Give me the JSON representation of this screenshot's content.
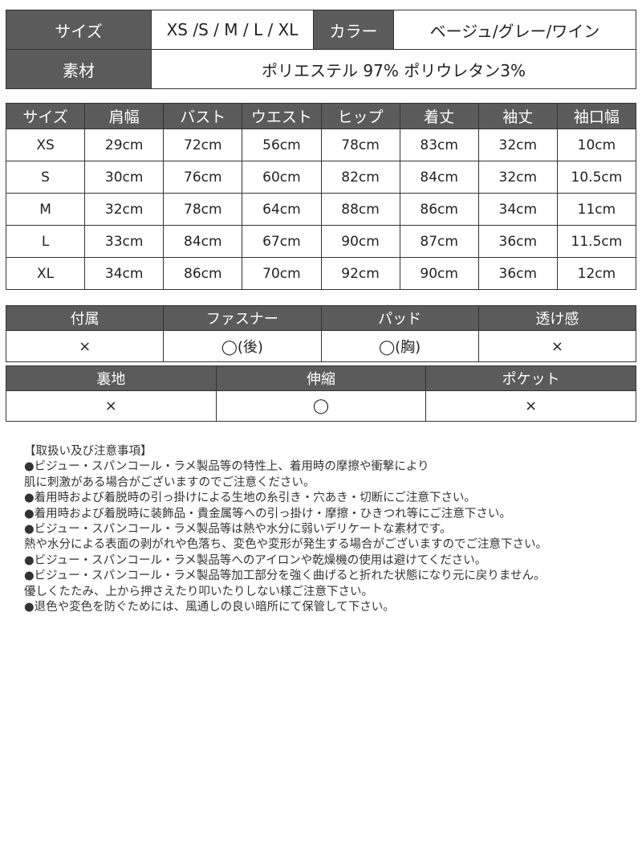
{
  "spec": {
    "size_label": "サイズ",
    "size_value": "XS /S / M / L / XL",
    "color_label": "カラー",
    "color_value": "ベージュ/グレー/ワイン",
    "material_label": "素材",
    "material_value": "ポリエステル 97% ポリウレタン3%"
  },
  "size_table": {
    "headers": [
      "サイズ",
      "肩幅",
      "バスト",
      "ウエスト",
      "ヒップ",
      "着丈",
      "袖丈",
      "袖口幅"
    ],
    "rows": [
      [
        "XS",
        "29cm",
        "72cm",
        "56cm",
        "78cm",
        "83cm",
        "32cm",
        "10cm"
      ],
      [
        "S",
        "30cm",
        "76cm",
        "60cm",
        "82cm",
        "84cm",
        "32cm",
        "10.5cm"
      ],
      [
        "M",
        "32cm",
        "78cm",
        "64cm",
        "88cm",
        "86cm",
        "34cm",
        "11cm"
      ],
      [
        "L",
        "33cm",
        "84cm",
        "67cm",
        "90cm",
        "87cm",
        "36cm",
        "11.5cm"
      ],
      [
        "XL",
        "34cm",
        "86cm",
        "70cm",
        "92cm",
        "90cm",
        "36cm",
        "12cm"
      ]
    ]
  },
  "features1": {
    "headers": [
      "付属",
      "ファスナー",
      "パッド",
      "透け感"
    ],
    "values": [
      "×",
      "◯(後)",
      "◯(胸)",
      "×"
    ]
  },
  "features2": {
    "headers": [
      "裏地",
      "伸縮",
      "ポケット"
    ],
    "values": [
      "×",
      "◯",
      "×"
    ]
  },
  "notes": [
    "【取扱い及び注意事項】",
    "●ビジュー・スパンコール・ラメ製品等の特性上、着用時の摩擦や衝撃により",
    "肌に刺激がある場合がございますのでご注意ください。",
    "●着用時および着脱時の引っ掛けによる生地の糸引き・穴あき・切断にご注意下さい。",
    "●着用時および着脱時に装飾品・貴金属等への引っ掛け・摩擦・ひきつれ等にご注意下さい。",
    "●ビジュー・スパンコール・ラメ製品等は熱や水分に弱いデリケートな素材です。",
    "熱や水分による表面の剥がれや色落ち、変色や変形が発生する場合がございますのでご注意下さい。",
    "●ビジュー・スパンコール・ラメ製品等へのアイロンや乾燥機の使用は避けてください。",
    "●ビジュー・スパンコール・ラメ製品等加工部分を強く曲げると折れた状態になり元に戻りません。",
    "優しくたたみ、上から押さえたり叩いたりしない様ご注意下さい。",
    "●退色や変色を防ぐためには、風通しの良い暗所にて保管して下さい。"
  ]
}
